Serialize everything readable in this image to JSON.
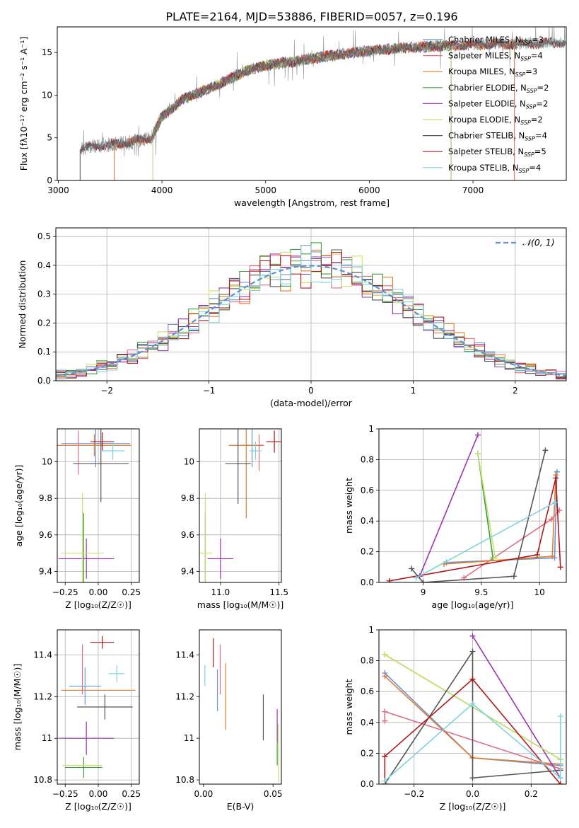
{
  "figure_title": "PLATE=2164, MJD=53886, FIBERID=0057, z=0.196",
  "chart_data": [
    {
      "id": "spectrum",
      "type": "line",
      "title": "PLATE=2164, MJD=53886, FIBERID=0057, z=0.196",
      "xlabel": "wavelength [Angstrom, rest frame]",
      "ylabel": "Flux [fλ10⁻¹⁷ erg cm⁻² s⁻¹ A⁻¹]",
      "xlim": [
        2990,
        7900
      ],
      "ylim": [
        0,
        18
      ],
      "xticks": [
        3000,
        4000,
        5000,
        6000,
        7000
      ],
      "yticks": [
        0,
        5,
        10,
        15
      ],
      "grid": false,
      "legend_position": "top-right",
      "continuum": [
        [
          3200,
          3.5
        ],
        [
          3300,
          4.0
        ],
        [
          3500,
          4.2
        ],
        [
          3700,
          4.5
        ],
        [
          3900,
          5.0
        ],
        [
          4000,
          7.5
        ],
        [
          4200,
          9.5
        ],
        [
          4500,
          11.0
        ],
        [
          4800,
          12.8
        ],
        [
          5000,
          13.5
        ],
        [
          5300,
          14.0
        ],
        [
          5600,
          14.6
        ],
        [
          6000,
          15.2
        ],
        [
          6400,
          15.6
        ],
        [
          6800,
          15.8
        ],
        [
          7200,
          16.0
        ],
        [
          7500,
          16.0
        ],
        [
          7900,
          16.2
        ]
      ],
      "series": [
        {
          "name": "Chabrier MILES, N_SSP=3",
          "legend_main": "Chabrier MILES, N",
          "legend_sub": "SSP",
          "legend_tail": "=3",
          "color": "#6b93d8",
          "range": [
            3540,
            7400
          ]
        },
        {
          "name": "Salpeter MILES, N_SSP=4",
          "legend_main": "Salpeter MILES, N",
          "legend_sub": "SSP",
          "legend_tail": "=4",
          "color": "#e06b80",
          "range": [
            3540,
            7400
          ]
        },
        {
          "name": "Kroupa MILES, N_SSP=3",
          "legend_main": "Kroupa MILES, N",
          "legend_sub": "SSP",
          "legend_tail": "=3",
          "color": "#e07c2b",
          "range": [
            3540,
            7400
          ]
        },
        {
          "name": "Chabrier ELODIE, N_SSP=2",
          "legend_main": "Chabrier ELODIE, N",
          "legend_sub": "SSP",
          "legend_tail": "=2",
          "color": "#3c9b3c",
          "range": [
            3910,
            6790
          ]
        },
        {
          "name": "Salpeter ELODIE, N_SSP=2",
          "legend_main": "Salpeter ELODIE, N",
          "legend_sub": "SSP",
          "legend_tail": "=2",
          "color": "#9b35b0",
          "range": [
            3910,
            6790
          ]
        },
        {
          "name": "Kroupa ELODIE, N_SSP=2",
          "legend_main": "Kroupa ELODIE, N",
          "legend_sub": "SSP",
          "legend_tail": "=2",
          "color": "#c8e36b",
          "range": [
            3910,
            6790
          ]
        },
        {
          "name": "Chabrier STELIB, N_SSP=4",
          "legend_main": "Chabrier STELIB, N",
          "legend_sub": "SSP",
          "legend_tail": "=4",
          "color": "#555555",
          "range": [
            3210,
            7900
          ]
        },
        {
          "name": "Salpeter STELIB, N_SSP=5",
          "legend_main": "Salpeter STELIB, N",
          "legend_sub": "SSP",
          "legend_tail": "=5",
          "color": "#b01818",
          "range": [
            3210,
            7900
          ]
        },
        {
          "name": "Kroupa STELIB, N_SSP=4",
          "legend_main": "Kroupa STELIB, N",
          "legend_sub": "SSP",
          "legend_tail": "=4",
          "color": "#7fd3dc",
          "range": [
            3210,
            7900
          ]
        }
      ]
    },
    {
      "id": "residuals",
      "type": "line",
      "xlabel": "(data-model)/error",
      "ylabel": "Normed distribution",
      "xlim": [
        -2.5,
        2.5
      ],
      "ylim": [
        0,
        0.53
      ],
      "xticks": [
        -2,
        -1,
        0,
        1,
        2
      ],
      "yticks": [
        0.0,
        0.1,
        0.2,
        0.3,
        0.4,
        0.5
      ],
      "grid": true,
      "legend_position": "top-right",
      "reference_curve": {
        "name": "𝒩(0, 1)",
        "color": "#5b8fd8",
        "style": "dashed"
      },
      "bin_width": 0.1,
      "series_colors": [
        "#6b93d8",
        "#e06b80",
        "#e07c2b",
        "#3c9b3c",
        "#9b35b0",
        "#c8e36b",
        "#555555",
        "#b01818",
        "#7fd3dc"
      ]
    },
    {
      "id": "age_vs_Z",
      "type": "scatter",
      "xlabel": "Z [log₁₀(Z/Z☉)]",
      "ylabel": "age  [log₁₀(age/yr)]",
      "xlim": [
        -0.31,
        0.31
      ],
      "ylim": [
        9.34,
        10.18
      ],
      "xticks": [
        -0.25,
        0.0,
        0.25
      ],
      "xtick_labels": [
        "−0.25",
        "0.00",
        "0.25"
      ],
      "yticks": [
        9.4,
        9.6,
        9.8,
        10.0
      ],
      "grid": true,
      "points": [
        {
          "x": -0.02,
          "y": 10.1,
          "xerr": 0.26,
          "yerr": 0.13,
          "color": "#6b93d8"
        },
        {
          "x": -0.15,
          "y": 10.05,
          "xerr": 0.0,
          "yerr": 0.12,
          "color": "#e06b80"
        },
        {
          "x": -0.03,
          "y": 10.09,
          "xerr": 0.28,
          "yerr": 0.06,
          "color": "#e07c2b"
        },
        {
          "x": -0.11,
          "y": 9.5,
          "xerr": 0.0,
          "yerr": 0.22,
          "color": "#3c9b3c"
        },
        {
          "x": -0.09,
          "y": 9.47,
          "xerr": 0.21,
          "yerr": 0.11,
          "color": "#9b35b0"
        },
        {
          "x": -0.12,
          "y": 9.5,
          "xerr": 0.16,
          "yerr": 0.33,
          "color": "#c8e36b"
        },
        {
          "x": 0.02,
          "y": 9.99,
          "xerr": 0.21,
          "yerr": 0.21,
          "color": "#555555"
        },
        {
          "x": 0.03,
          "y": 10.11,
          "xerr": 0.09,
          "yerr": 0.05,
          "color": "#b01818"
        },
        {
          "x": 0.11,
          "y": 10.06,
          "xerr": 0.09,
          "yerr": 0.05,
          "color": "#7fd3dc"
        }
      ]
    },
    {
      "id": "age_vs_mass",
      "type": "scatter",
      "xlabel": "mass [log₁₀(M/M☉)]",
      "ylabel": "",
      "xlim": [
        10.82,
        11.52
      ],
      "ylim": [
        9.34,
        10.18
      ],
      "xticks": [
        11.0,
        11.5
      ],
      "xtick_labels": [
        "11.0",
        "11.5"
      ],
      "yticks": [
        9.4,
        9.6,
        9.8,
        10.0
      ],
      "grid": true,
      "points": [
        {
          "x": 11.27,
          "y": 10.09,
          "xerr": 0.1,
          "yerr": 0.12,
          "color": "#6b93d8"
        },
        {
          "x": 11.33,
          "y": 10.05,
          "xerr": 0.0,
          "yerr": 0.1,
          "color": "#e06b80"
        },
        {
          "x": 11.22,
          "y": 10.09,
          "xerr": 0.15,
          "yerr": 0.4,
          "color": "#e07c2b"
        },
        {
          "x": 10.87,
          "y": 9.5,
          "xerr": 0.0,
          "yerr": 0.22,
          "color": "#3c9b3c"
        },
        {
          "x": 11.0,
          "y": 9.47,
          "xerr": 0.11,
          "yerr": 0.11,
          "color": "#9b35b0"
        },
        {
          "x": 10.87,
          "y": 9.5,
          "xerr": 0.06,
          "yerr": 0.33,
          "color": "#c8e36b"
        },
        {
          "x": 11.15,
          "y": 9.99,
          "xerr": 0.11,
          "yerr": 0.22,
          "color": "#555555"
        },
        {
          "x": 11.46,
          "y": 10.11,
          "xerr": 0.07,
          "yerr": 0.06,
          "color": "#b01818"
        },
        {
          "x": 11.3,
          "y": 10.06,
          "xerr": 0.05,
          "yerr": 0.05,
          "color": "#7fd3dc"
        }
      ]
    },
    {
      "id": "mass_weight_vs_age",
      "type": "line",
      "xlabel": "age  [log₁₀(age/yr)]",
      "ylabel": "mass weight",
      "xlim": [
        8.62,
        10.23
      ],
      "ylim": [
        0,
        1
      ],
      "xticks": [
        9.0,
        9.5,
        10.0
      ],
      "yticks": [
        0.0,
        0.2,
        0.4,
        0.6,
        0.8,
        1.0
      ],
      "grid": true,
      "series": [
        {
          "color": "#6b93d8",
          "points": [
            [
              9.2,
              0.13
            ],
            [
              10.13,
              0.16
            ],
            [
              10.15,
              0.72
            ]
          ]
        },
        {
          "color": "#e06b80",
          "points": [
            [
              9.35,
              0.03
            ],
            [
              10.1,
              0.41
            ],
            [
              10.17,
              0.47
            ]
          ]
        },
        {
          "color": "#e07c2b",
          "points": [
            [
              9.18,
              0.12
            ],
            [
              10.11,
              0.17
            ],
            [
              10.14,
              0.7
            ]
          ]
        },
        {
          "color": "#3c9b3c",
          "points": [
            [
              9.6,
              0.16
            ],
            [
              9.47,
              0.84
            ]
          ]
        },
        {
          "color": "#9b35b0",
          "points": [
            [
              8.97,
              0.04
            ],
            [
              9.47,
              0.96
            ]
          ]
        },
        {
          "color": "#c8e36b",
          "points": [
            [
              9.62,
              0.16
            ],
            [
              9.47,
              0.84
            ]
          ]
        },
        {
          "color": "#555555",
          "points": [
            [
              8.9,
              0.09
            ],
            [
              9.0,
              0.0
            ],
            [
              9.78,
              0.04
            ],
            [
              10.05,
              0.86
            ]
          ]
        },
        {
          "color": "#b01818",
          "points": [
            [
              8.71,
              0.01
            ],
            [
              9.98,
              0.18
            ],
            [
              10.14,
              0.68
            ],
            [
              10.18,
              0.1
            ]
          ]
        },
        {
          "color": "#7fd3dc",
          "points": [
            [
              8.94,
              0.03
            ],
            [
              10.13,
              0.52
            ]
          ]
        }
      ]
    },
    {
      "id": "mass_vs_Z",
      "type": "scatter",
      "xlabel": "Z [log₁₀(Z/Z☉)]",
      "ylabel": "mass [log₁₀(M/M☉)]",
      "xlim": [
        -0.31,
        0.31
      ],
      "ylim": [
        10.78,
        11.52
      ],
      "xticks": [
        -0.25,
        0.0,
        0.25
      ],
      "xtick_labels": [
        "−0.25",
        "0.00",
        "0.25"
      ],
      "yticks": [
        10.8,
        11.0,
        11.2,
        11.4
      ],
      "grid": true,
      "points": [
        {
          "x": -0.1,
          "y": 11.25,
          "xerr": 0.12,
          "yerr": 0.09,
          "color": "#6b93d8"
        },
        {
          "x": -0.12,
          "y": 11.33,
          "xerr": 0.0,
          "yerr": 0.12,
          "color": "#e06b80"
        },
        {
          "x": 0.0,
          "y": 11.23,
          "xerr": 0.28,
          "yerr": 0.0,
          "color": "#e07c2b"
        },
        {
          "x": -0.11,
          "y": 10.86,
          "xerr": 0.14,
          "yerr": 0.05,
          "color": "#3c9b3c"
        },
        {
          "x": -0.09,
          "y": 11.0,
          "xerr": 0.21,
          "yerr": 0.08,
          "color": "#9b35b0"
        },
        {
          "x": -0.12,
          "y": 10.87,
          "xerr": 0.15,
          "yerr": 0.0,
          "color": "#c8e36b"
        },
        {
          "x": 0.05,
          "y": 11.15,
          "xerr": 0.21,
          "yerr": 0.06,
          "color": "#555555"
        },
        {
          "x": 0.03,
          "y": 11.46,
          "xerr": 0.09,
          "yerr": 0.03,
          "color": "#b01818"
        },
        {
          "x": 0.14,
          "y": 11.31,
          "xerr": 0.06,
          "yerr": 0.04,
          "color": "#7fd3dc"
        }
      ]
    },
    {
      "id": "mass_vs_EBV",
      "type": "scatter",
      "xlabel": "E(B-V)",
      "ylabel": "",
      "xlim": [
        -0.003,
        0.056
      ],
      "ylim": [
        10.78,
        11.52
      ],
      "xticks": [
        0.0,
        0.05
      ],
      "xtick_labels": [
        "0.00",
        "0.05"
      ],
      "yticks": [
        10.8,
        11.0,
        11.2,
        11.4
      ],
      "grid": false,
      "points": [
        {
          "x": 0.01,
          "y": 11.23,
          "xerr": 0.0,
          "yerr": 0.1,
          "color": "#6b93d8"
        },
        {
          "x": 0.012,
          "y": 11.33,
          "xerr": 0.0,
          "yerr": 0.12,
          "color": "#e06b80"
        },
        {
          "x": 0.016,
          "y": 11.2,
          "xerr": 0.0,
          "yerr": 0.16,
          "color": "#e07c2b"
        },
        {
          "x": 0.053,
          "y": 10.97,
          "xerr": 0.0,
          "yerr": 0.1,
          "color": "#3c9b3c"
        },
        {
          "x": 0.053,
          "y": 11.06,
          "xerr": 0.0,
          "yerr": 0.08,
          "color": "#9b35b0"
        },
        {
          "x": 0.054,
          "y": 10.93,
          "xerr": 0.0,
          "yerr": 0.14,
          "color": "#c8e36b"
        },
        {
          "x": 0.043,
          "y": 11.1,
          "xerr": 0.0,
          "yerr": 0.11,
          "color": "#555555"
        },
        {
          "x": 0.007,
          "y": 11.41,
          "xerr": 0.0,
          "yerr": 0.07,
          "color": "#b01818"
        },
        {
          "x": 0.001,
          "y": 11.3,
          "xerr": 0.0,
          "yerr": 0.05,
          "color": "#7fd3dc"
        }
      ]
    },
    {
      "id": "mass_weight_vs_Z",
      "type": "line",
      "xlabel": "Z [log₁₀(Z/Z☉)]",
      "ylabel": "mass weight",
      "xlim": [
        -0.32,
        0.32
      ],
      "ylim": [
        0,
        1
      ],
      "xticks": [
        -0.2,
        0.0,
        0.2
      ],
      "xtick_labels": [
        "−0.2",
        "0.0",
        "0.2"
      ],
      "yticks": [
        0.0,
        0.2,
        0.4,
        0.6,
        0.8,
        1.0
      ],
      "grid": true,
      "series": [
        {
          "color": "#6b93d8",
          "points": [
            [
              -0.3,
              0.72
            ],
            [
              0.0,
              0.17
            ],
            [
              0.3,
              0.12
            ]
          ]
        },
        {
          "color": "#e06b80",
          "points": [
            [
              -0.3,
              0.41
            ],
            [
              -0.3,
              0.47
            ],
            [
              0.3,
              0.1
            ]
          ]
        },
        {
          "color": "#e07c2b",
          "points": [
            [
              -0.3,
              0.7
            ],
            [
              0.0,
              0.17
            ],
            [
              0.3,
              0.13
            ]
          ]
        },
        {
          "color": "#3c9b3c",
          "points": [
            [
              -0.3,
              0.84
            ],
            [
              0.3,
              0.16
            ]
          ]
        },
        {
          "color": "#9b35b0",
          "points": [
            [
              0.0,
              0.96
            ],
            [
              0.3,
              0.04
            ]
          ]
        },
        {
          "color": "#c8e36b",
          "points": [
            [
              -0.3,
              0.84
            ],
            [
              0.3,
              0.16
            ]
          ]
        },
        {
          "color": "#555555",
          "points": [
            [
              -0.3,
              0.0
            ],
            [
              0.0,
              0.86
            ],
            [
              0.0,
              0.04
            ],
            [
              0.3,
              0.09
            ]
          ]
        },
        {
          "color": "#b01818",
          "points": [
            [
              -0.3,
              0.0
            ],
            [
              -0.3,
              0.18
            ],
            [
              0.0,
              0.68
            ],
            [
              0.3,
              0.0
            ]
          ]
        },
        {
          "color": "#7fd3dc",
          "points": [
            [
              -0.3,
              0.02
            ],
            [
              0.0,
              0.52
            ],
            [
              0.3,
              0.04
            ],
            [
              0.3,
              0.44
            ]
          ]
        }
      ]
    }
  ]
}
